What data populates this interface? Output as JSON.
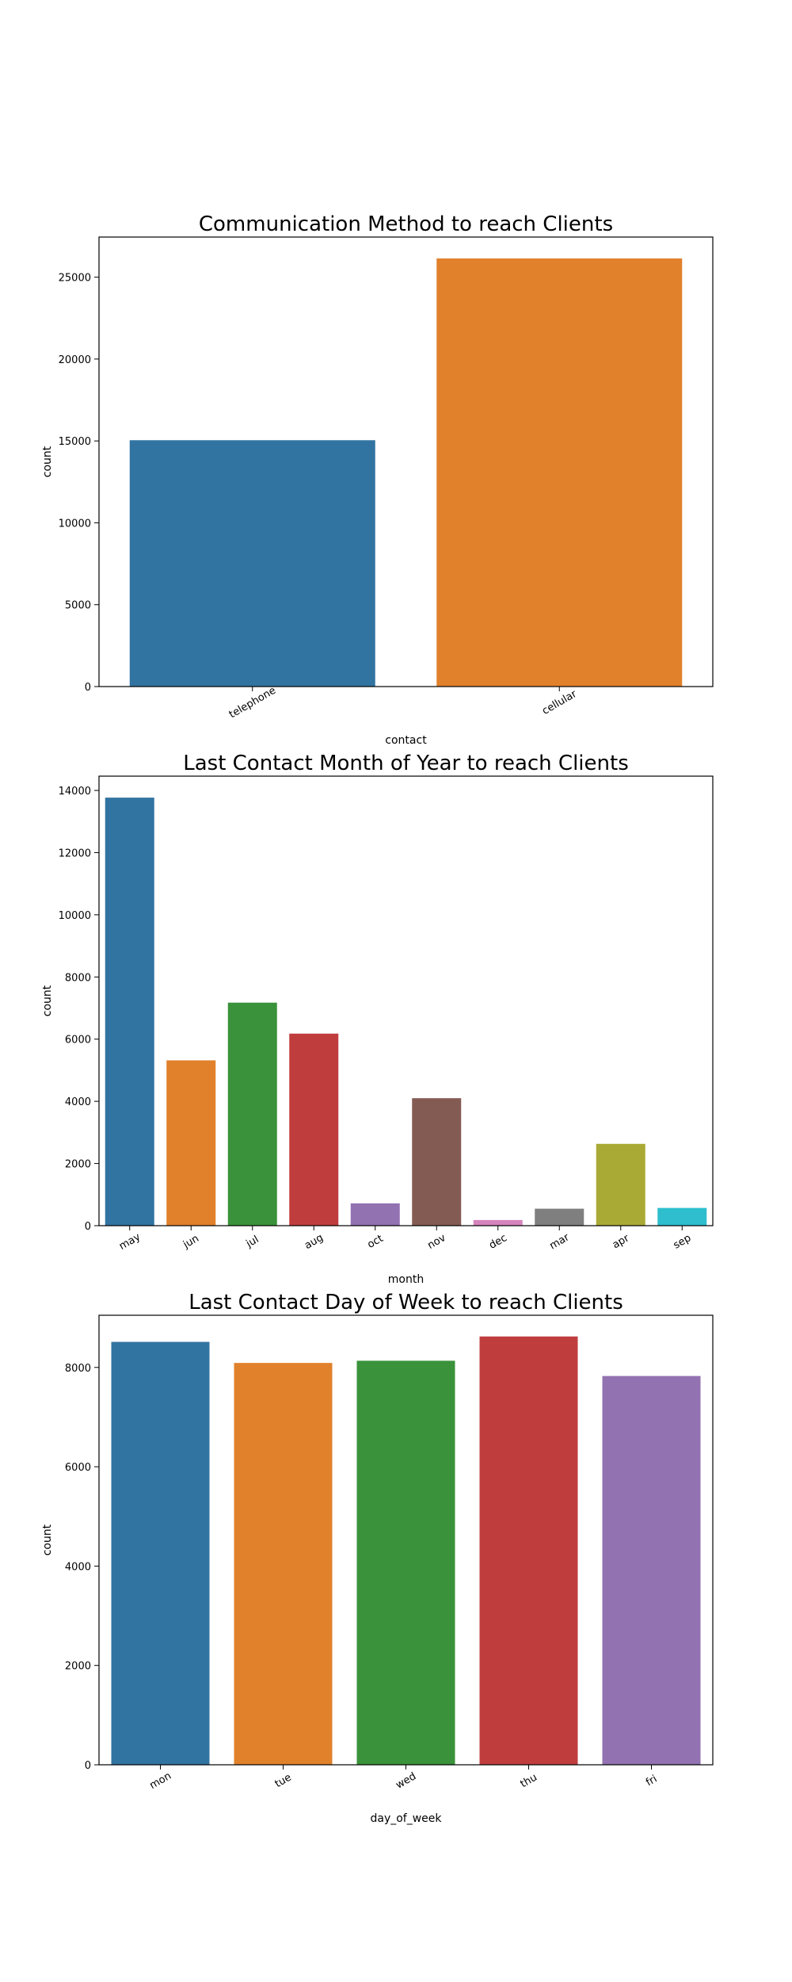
{
  "chart_data": [
    {
      "type": "bar",
      "title": "Communication Method to reach Clients",
      "xlabel": "contact",
      "ylabel": "count",
      "categories": [
        "telephone",
        "cellular"
      ],
      "values": [
        15044,
        26144
      ],
      "ylim": [
        0,
        27450
      ],
      "yticks": [
        0,
        5000,
        10000,
        15000,
        20000,
        25000
      ],
      "colors": [
        "#3274a1",
        "#e1812c"
      ],
      "grid": false,
      "legend": "none"
    },
    {
      "type": "bar",
      "title": "Last Contact Month of Year to reach Clients",
      "xlabel": "month",
      "ylabel": "count",
      "categories": [
        "may",
        "jun",
        "jul",
        "aug",
        "oct",
        "nov",
        "dec",
        "mar",
        "apr",
        "sep"
      ],
      "values": [
        13769,
        5318,
        7174,
        6178,
        718,
        4101,
        182,
        546,
        2632,
        570
      ],
      "ylim": [
        0,
        14460
      ],
      "yticks": [
        0,
        2000,
        4000,
        6000,
        8000,
        10000,
        12000,
        14000
      ],
      "colors": [
        "#3274a1",
        "#e1812c",
        "#3a923a",
        "#c03d3e",
        "#9372b2",
        "#845b53",
        "#d684bd",
        "#7f7f7f",
        "#a9aa35",
        "#2ebece"
      ],
      "grid": false,
      "legend": "none"
    },
    {
      "type": "bar",
      "title": "Last Contact Day of Week to reach Clients",
      "xlabel": "day_of_week",
      "ylabel": "count",
      "categories": [
        "mon",
        "tue",
        "wed",
        "thu",
        "fri"
      ],
      "values": [
        8514,
        8090,
        8134,
        8623,
        7827
      ],
      "ylim": [
        0,
        9050
      ],
      "yticks": [
        0,
        2000,
        4000,
        6000,
        8000
      ],
      "colors": [
        "#3274a1",
        "#e1812c",
        "#3a923a",
        "#c03d3e",
        "#9372b2"
      ],
      "grid": false,
      "legend": "none"
    }
  ]
}
